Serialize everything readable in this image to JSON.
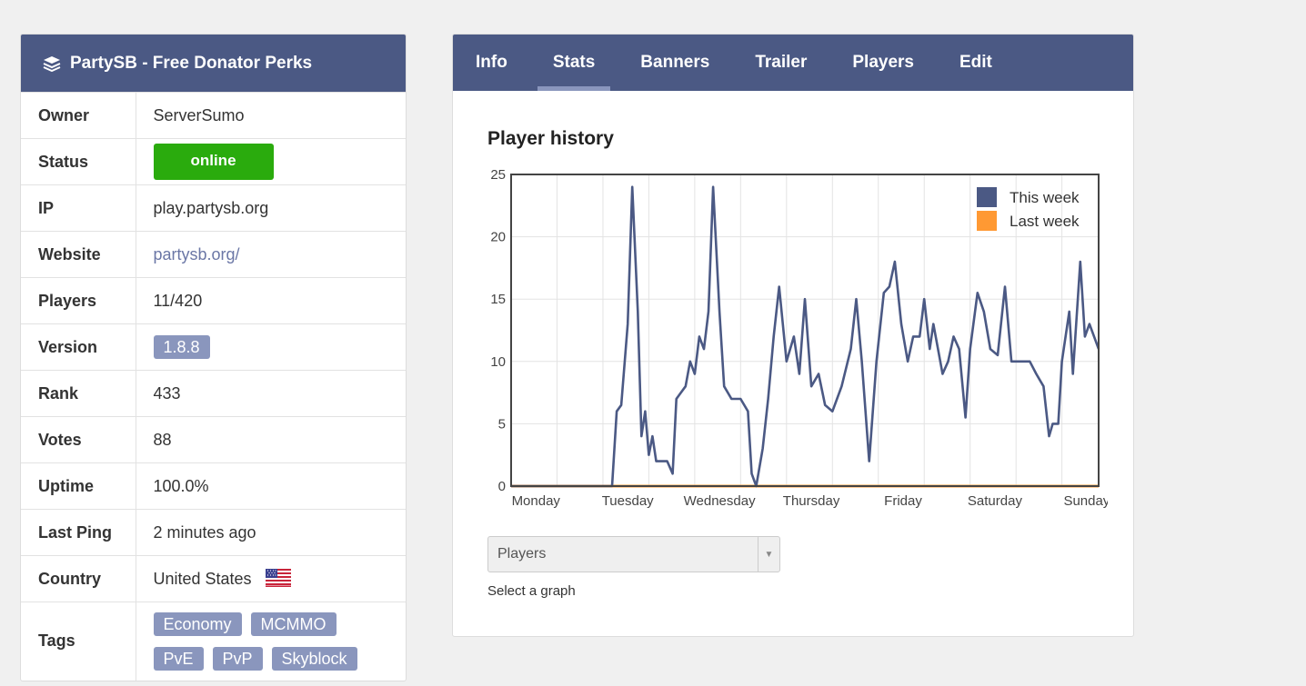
{
  "server": {
    "title": "PartySB - Free Donator Perks",
    "icon": "stack-icon"
  },
  "info": {
    "owner_label": "Owner",
    "owner": "ServerSumo",
    "status_label": "Status",
    "status": "online",
    "ip_label": "IP",
    "ip": "play.partysb.org",
    "website_label": "Website",
    "website": "partysb.org/",
    "players_label": "Players",
    "players": "11/420",
    "version_label": "Version",
    "version": "1.8.8",
    "rank_label": "Rank",
    "rank": "433",
    "votes_label": "Votes",
    "votes": "88",
    "uptime_label": "Uptime",
    "uptime": "100.0%",
    "lastping_label": "Last Ping",
    "lastping": "2 minutes ago",
    "country_label": "Country",
    "country": "United States",
    "tags_label": "Tags",
    "tags": [
      "Economy",
      "MCMMO",
      "PvE",
      "PvP",
      "Skyblock"
    ]
  },
  "tabs": [
    "Info",
    "Stats",
    "Banners",
    "Trailer",
    "Players",
    "Edit"
  ],
  "active_tab": "Stats",
  "chart_heading": "Player history",
  "select": {
    "value": "Players",
    "help": "Select a graph"
  },
  "colors": {
    "header": "#4b5984",
    "online": "#2aab0d",
    "pill": "#8a96bd",
    "this_week": "#4b5984",
    "last_week": "#ff9933"
  },
  "chart_data": {
    "type": "line",
    "title": "",
    "x_categories": [
      "Monday",
      "Tuesday",
      "Wednesday",
      "Thursday",
      "Friday",
      "Saturday",
      "Sunday"
    ],
    "ylim": [
      0,
      25
    ],
    "yticks": [
      0,
      5,
      10,
      15,
      20,
      25
    ],
    "grid": true,
    "legend_position": "top-right",
    "series": [
      {
        "name": "This week",
        "points": [
          [
            0,
            0
          ],
          [
            1.1,
            0
          ],
          [
            1.15,
            6
          ],
          [
            1.2,
            6.5
          ],
          [
            1.27,
            13
          ],
          [
            1.32,
            24
          ],
          [
            1.38,
            14
          ],
          [
            1.42,
            4
          ],
          [
            1.46,
            6
          ],
          [
            1.5,
            2.5
          ],
          [
            1.54,
            4
          ],
          [
            1.58,
            2
          ],
          [
            1.65,
            2
          ],
          [
            1.7,
            2
          ],
          [
            1.76,
            1
          ],
          [
            1.8,
            7
          ],
          [
            1.85,
            7.5
          ],
          [
            1.9,
            8
          ],
          [
            1.95,
            10
          ],
          [
            2.0,
            9
          ],
          [
            2.05,
            12
          ],
          [
            2.1,
            11
          ],
          [
            2.15,
            14
          ],
          [
            2.2,
            24
          ],
          [
            2.27,
            14
          ],
          [
            2.32,
            8
          ],
          [
            2.4,
            7
          ],
          [
            2.5,
            7
          ],
          [
            2.58,
            6
          ],
          [
            2.62,
            1
          ],
          [
            2.67,
            0
          ],
          [
            2.74,
            3
          ],
          [
            2.8,
            7
          ],
          [
            2.86,
            12
          ],
          [
            2.92,
            16
          ],
          [
            3.0,
            10
          ],
          [
            3.08,
            12
          ],
          [
            3.14,
            9
          ],
          [
            3.2,
            15
          ],
          [
            3.27,
            8
          ],
          [
            3.35,
            9
          ],
          [
            3.42,
            6.5
          ],
          [
            3.5,
            6
          ],
          [
            3.6,
            8
          ],
          [
            3.7,
            11
          ],
          [
            3.76,
            15
          ],
          [
            3.82,
            10
          ],
          [
            3.9,
            2
          ],
          [
            3.98,
            10
          ],
          [
            4.06,
            15.5
          ],
          [
            4.12,
            16
          ],
          [
            4.18,
            18
          ],
          [
            4.25,
            13
          ],
          [
            4.32,
            10
          ],
          [
            4.38,
            12
          ],
          [
            4.45,
            12
          ],
          [
            4.5,
            15
          ],
          [
            4.56,
            11
          ],
          [
            4.6,
            13
          ],
          [
            4.7,
            9
          ],
          [
            4.76,
            10
          ],
          [
            4.82,
            12
          ],
          [
            4.88,
            11
          ],
          [
            4.95,
            5.5
          ],
          [
            5.0,
            11
          ],
          [
            5.08,
            15.5
          ],
          [
            5.15,
            14
          ],
          [
            5.22,
            11
          ],
          [
            5.3,
            10.5
          ],
          [
            5.38,
            16
          ],
          [
            5.45,
            10
          ],
          [
            5.55,
            10
          ],
          [
            5.65,
            10
          ],
          [
            5.72,
            9
          ],
          [
            5.8,
            8
          ],
          [
            5.86,
            4
          ],
          [
            5.9,
            5
          ],
          [
            5.96,
            5
          ],
          [
            6.0,
            10
          ],
          [
            6.08,
            14
          ],
          [
            6.12,
            9
          ],
          [
            6.2,
            18
          ],
          [
            6.25,
            12
          ],
          [
            6.3,
            13
          ],
          [
            6.4,
            11
          ]
        ]
      },
      {
        "name": "Last week",
        "points": [
          [
            0,
            0
          ],
          [
            6.4,
            0
          ]
        ]
      }
    ]
  }
}
